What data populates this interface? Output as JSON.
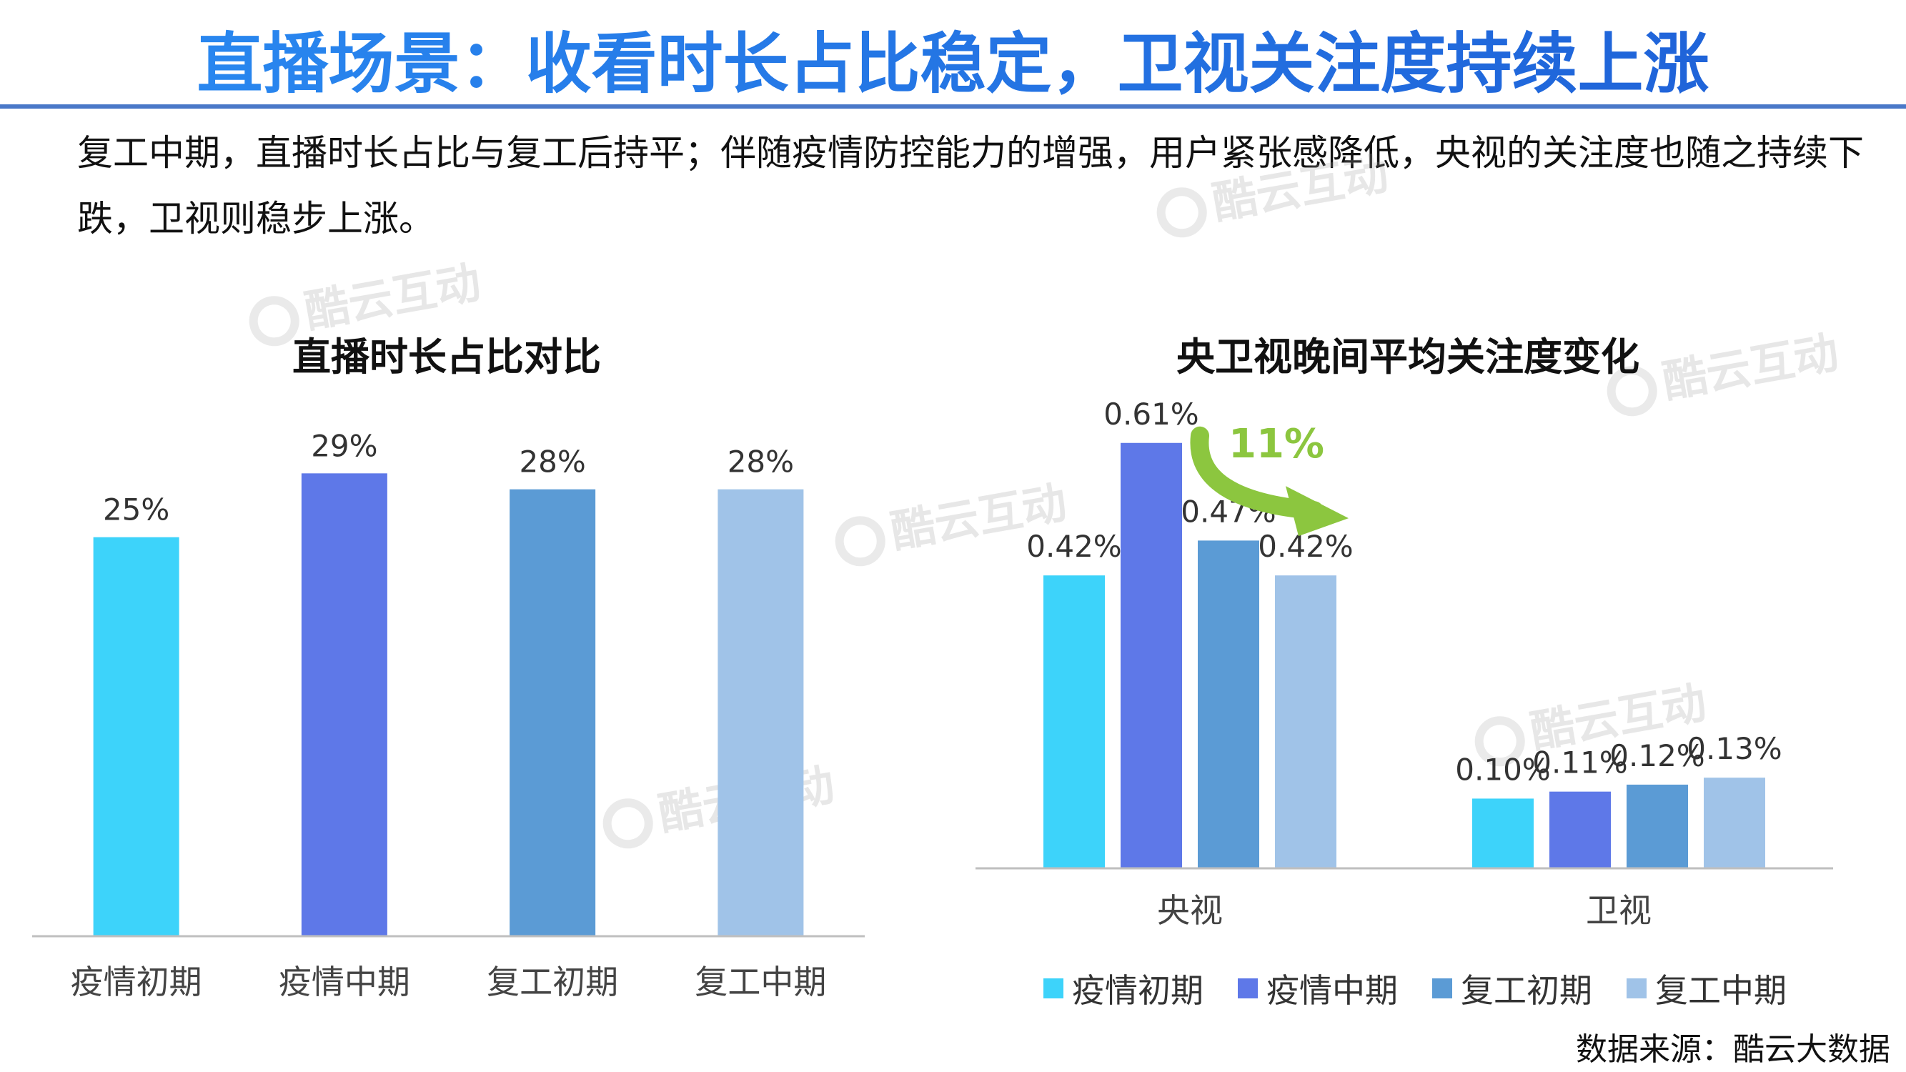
{
  "page": {
    "title": "直播场景：收看时长占比稳定，卫视关注度持续上涨",
    "intro": "复工中期，直播时长占比与复工后持平；伴随疫情防控能力的增强，用户紧张感降低，央视的关注度也随之持续下跌，卫视则稳步上涨。",
    "source": "数据来源：酷云大数据",
    "watermark": "酷云互动"
  },
  "colors": {
    "title": "#2a7de1",
    "s1": "#3dd3fa",
    "s2": "#5e78e8",
    "s3": "#5b9bd5",
    "s4": "#a0c3e8",
    "annotation": "#8cc63f"
  },
  "chart_data": [
    {
      "type": "bar",
      "title": "直播时长占比对比",
      "categories": [
        "疫情初期",
        "疫情中期",
        "复工初期",
        "复工中期"
      ],
      "values": [
        25,
        29,
        28,
        28
      ],
      "value_labels": [
        "25%",
        "29%",
        "28%",
        "28%"
      ],
      "ylim": [
        0,
        30
      ],
      "grid": false,
      "legend": "none"
    },
    {
      "type": "bar",
      "title": "央卫视晚间平均关注度变化",
      "categories": [
        "央视",
        "卫视"
      ],
      "series": [
        {
          "name": "疫情初期",
          "values": [
            0.42,
            0.1
          ],
          "labels": [
            "0.42%",
            "0.10%"
          ]
        },
        {
          "name": "疫情中期",
          "values": [
            0.61,
            0.11
          ],
          "labels": [
            "0.61%",
            "0.11%"
          ]
        },
        {
          "name": "复工初期",
          "values": [
            0.47,
            0.12
          ],
          "labels": [
            "0.47%",
            "0.12%"
          ]
        },
        {
          "name": "复工中期",
          "values": [
            0.42,
            0.13
          ],
          "labels": [
            "0.42%",
            "0.13%"
          ]
        }
      ],
      "ylim": [
        0,
        0.62
      ],
      "grid": false,
      "legend": "bottom",
      "annotation": "11%"
    }
  ]
}
